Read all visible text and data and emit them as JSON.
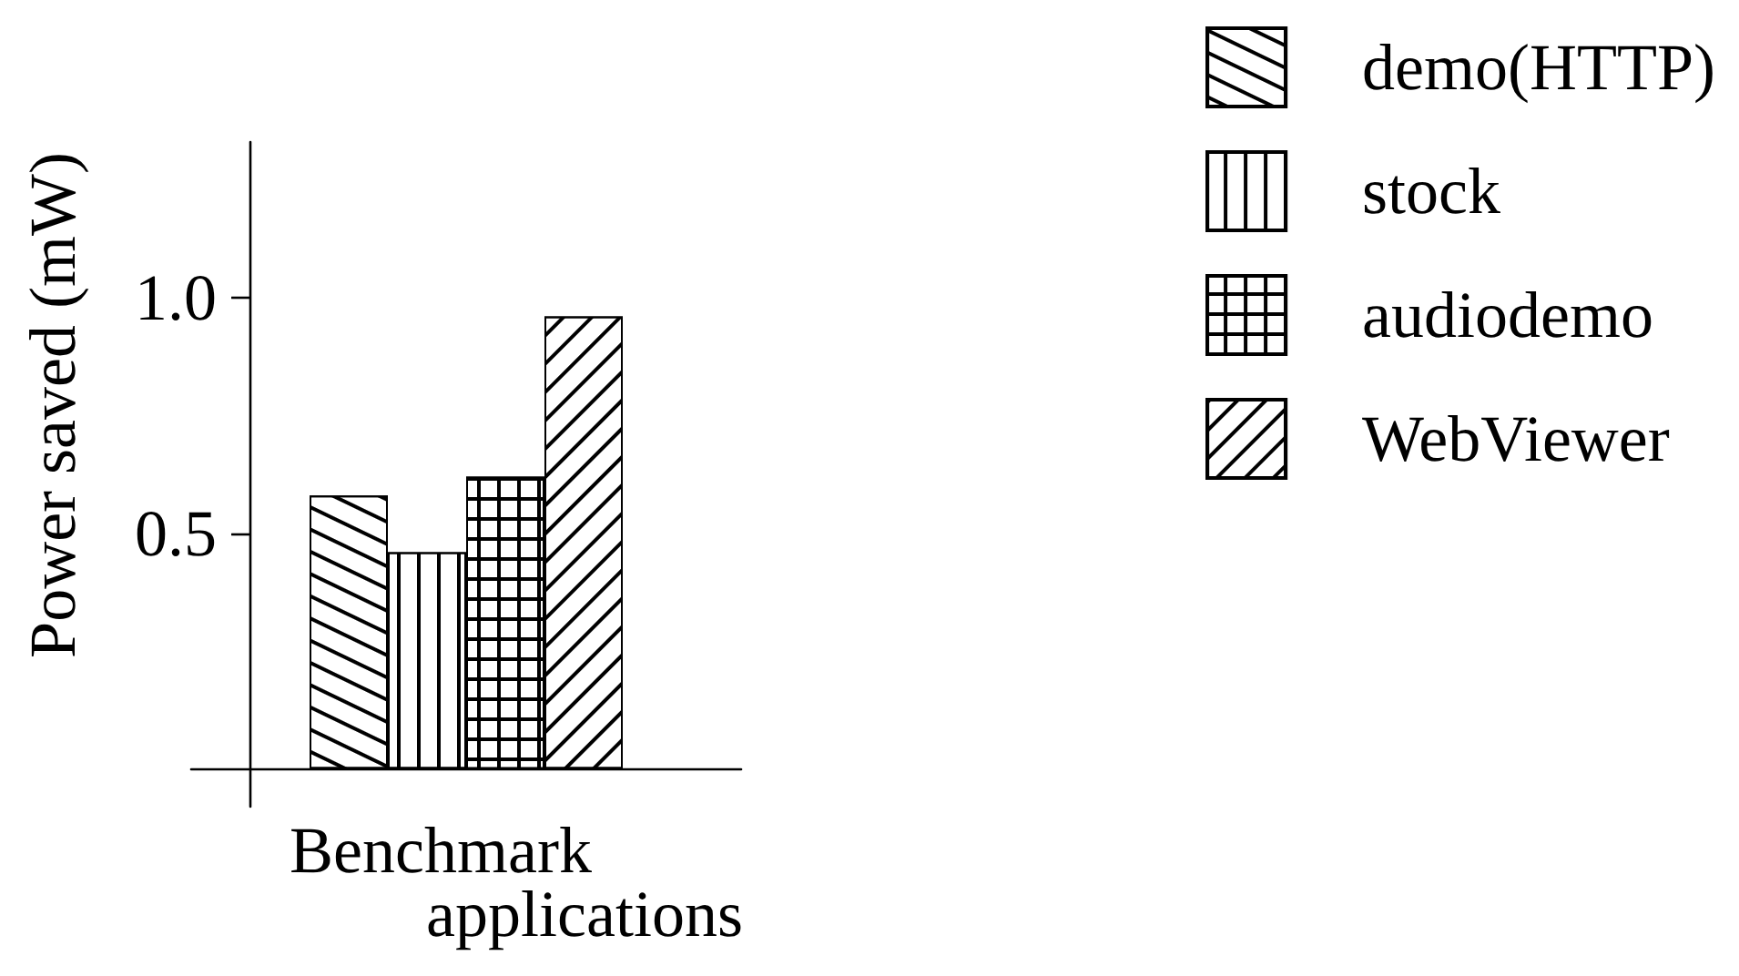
{
  "chart_data": {
    "type": "bar",
    "xlabel": "Benchmark applications",
    "ylabel": "Power saved (mW)",
    "categories": [
      null
    ],
    "series": [
      {
        "name": "demo(HTTP)",
        "color": "#000000",
        "values": [
          0.58
        ]
      },
      {
        "name": "stock",
        "color": "#000000",
        "values": [
          0.46
        ]
      },
      {
        "name": "audiodemo",
        "color": "#000000",
        "values": [
          0.62
        ]
      },
      {
        "name": "WebViewer",
        "color": "#000000",
        "values": [
          0.96
        ]
      }
    ],
    "ylim": [
      -0.08,
      1.33
    ],
    "yticks": [
      0.5,
      {
        "value": 1,
        "label": "1.0"
      }
    ],
    "legend": "top right"
  }
}
